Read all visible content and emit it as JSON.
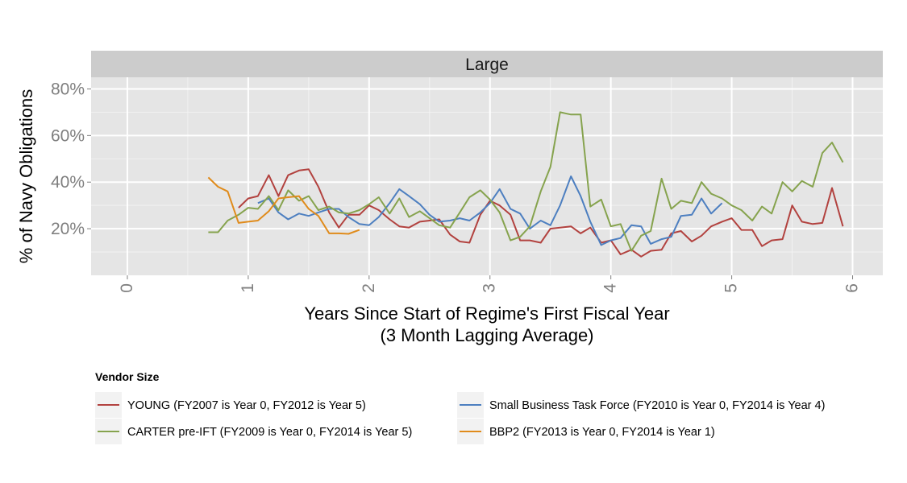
{
  "chart_data": {
    "type": "line",
    "panel_title": "Large",
    "xlabel_line1": "Years Since Start of Regime's First Fiscal Year",
    "xlabel_line2": "(3 Month Lagging Average)",
    "ylabel": "% of Navy Obligations",
    "xlim": [
      -0.3,
      6.25
    ],
    "ylim": [
      0.0,
      0.85
    ],
    "x_ticks": [
      0,
      1,
      2,
      3,
      4,
      5,
      6
    ],
    "x_tick_labels": [
      "0",
      "1",
      "2",
      "3",
      "4",
      "5",
      "6"
    ],
    "y_ticks": [
      0.2,
      0.4,
      0.6,
      0.8
    ],
    "y_tick_labels": [
      "20%",
      "40%",
      "60%",
      "80%"
    ],
    "grid": true,
    "legend": {
      "title": "Vendor Size",
      "placement": "bottom"
    },
    "series": [
      {
        "name": "YOUNG (FY2007 is Year 0, FY2012 is Year 5)",
        "color": "#b2423f",
        "x": [
          0.92,
          1.0,
          1.08,
          1.17,
          1.25,
          1.33,
          1.42,
          1.5,
          1.58,
          1.67,
          1.75,
          1.83,
          1.92,
          2.0,
          2.08,
          2.17,
          2.25,
          2.33,
          2.42,
          2.5,
          2.58,
          2.67,
          2.75,
          2.83,
          2.92,
          3.0,
          3.08,
          3.17,
          3.25,
          3.33,
          3.42,
          3.5,
          3.58,
          3.67,
          3.75,
          3.83,
          3.92,
          4.0,
          4.08,
          4.17,
          4.25,
          4.33,
          4.42,
          4.5,
          4.58,
          4.67,
          4.75,
          4.83,
          4.92,
          5.0,
          5.08,
          5.17,
          5.25,
          5.33,
          5.42,
          5.5,
          5.58,
          5.67,
          5.75,
          5.83,
          5.92
        ],
        "y": [
          0.29,
          0.33,
          0.34,
          0.43,
          0.34,
          0.43,
          0.45,
          0.455,
          0.38,
          0.27,
          0.205,
          0.26,
          0.26,
          0.3,
          0.28,
          0.24,
          0.21,
          0.205,
          0.23,
          0.235,
          0.24,
          0.175,
          0.145,
          0.14,
          0.26,
          0.32,
          0.3,
          0.26,
          0.15,
          0.15,
          0.14,
          0.2,
          0.205,
          0.21,
          0.18,
          0.205,
          0.14,
          0.15,
          0.09,
          0.11,
          0.08,
          0.105,
          0.11,
          0.18,
          0.19,
          0.145,
          0.17,
          0.21,
          0.23,
          0.245,
          0.195,
          0.195,
          0.125,
          0.15,
          0.155,
          0.3,
          0.23,
          0.22,
          0.225,
          0.375,
          0.21
        ]
      },
      {
        "name": "Small Business Task Force (FY2010 is Year 0, FY2014 is Year 4)",
        "color": "#4d7fc0",
        "x": [
          1.08,
          1.17,
          1.25,
          1.33,
          1.42,
          1.5,
          1.58,
          1.67,
          1.75,
          1.83,
          1.92,
          2.0,
          2.08,
          2.17,
          2.25,
          2.33,
          2.42,
          2.5,
          2.58,
          2.67,
          2.75,
          2.83,
          2.92,
          3.0,
          3.08,
          3.17,
          3.25,
          3.33,
          3.42,
          3.5,
          3.58,
          3.67,
          3.75,
          3.83,
          3.92,
          4.0,
          4.08,
          4.17,
          4.25,
          4.33,
          4.42,
          4.5,
          4.58,
          4.67,
          4.75,
          4.83,
          4.92
        ],
        "y": [
          0.31,
          0.33,
          0.27,
          0.24,
          0.265,
          0.255,
          0.27,
          0.285,
          0.285,
          0.25,
          0.22,
          0.215,
          0.25,
          0.31,
          0.37,
          0.34,
          0.305,
          0.26,
          0.23,
          0.235,
          0.245,
          0.235,
          0.27,
          0.31,
          0.37,
          0.285,
          0.265,
          0.2,
          0.235,
          0.215,
          0.3,
          0.425,
          0.34,
          0.23,
          0.13,
          0.15,
          0.16,
          0.215,
          0.21,
          0.135,
          0.155,
          0.165,
          0.255,
          0.26,
          0.33,
          0.265,
          0.31
        ]
      },
      {
        "name": "CARTER pre-IFT (FY2009 is Year 0, FY2014 is Year 5)",
        "color": "#86a34e",
        "x": [
          0.67,
          0.75,
          0.83,
          0.92,
          1.0,
          1.08,
          1.17,
          1.25,
          1.33,
          1.42,
          1.5,
          1.58,
          1.67,
          1.75,
          1.83,
          1.92,
          2.0,
          2.08,
          2.17,
          2.25,
          2.33,
          2.42,
          2.5,
          2.58,
          2.67,
          2.75,
          2.83,
          2.92,
          3.0,
          3.08,
          3.17,
          3.25,
          3.33,
          3.42,
          3.5,
          3.58,
          3.67,
          3.75,
          3.83,
          3.92,
          4.0,
          4.08,
          4.17,
          4.25,
          4.33,
          4.42,
          4.5,
          4.58,
          4.67,
          4.75,
          4.83,
          4.92,
          5.0,
          5.08,
          5.17,
          5.25,
          5.33,
          5.42,
          5.5,
          5.58,
          5.67,
          5.75,
          5.83,
          5.92
        ],
        "y": [
          0.185,
          0.185,
          0.235,
          0.26,
          0.29,
          0.285,
          0.34,
          0.28,
          0.365,
          0.32,
          0.34,
          0.28,
          0.295,
          0.27,
          0.265,
          0.28,
          0.305,
          0.335,
          0.265,
          0.33,
          0.25,
          0.275,
          0.245,
          0.215,
          0.205,
          0.27,
          0.335,
          0.365,
          0.325,
          0.27,
          0.15,
          0.165,
          0.21,
          0.36,
          0.465,
          0.7,
          0.69,
          0.69,
          0.295,
          0.325,
          0.21,
          0.22,
          0.105,
          0.17,
          0.19,
          0.415,
          0.285,
          0.32,
          0.31,
          0.4,
          0.35,
          0.33,
          0.3,
          0.28,
          0.235,
          0.295,
          0.265,
          0.4,
          0.36,
          0.405,
          0.38,
          0.525,
          0.57,
          0.485
        ]
      },
      {
        "name": "BBP2 (FY2013 is Year 0, FY2014 is Year 1)",
        "color": "#e08b1b",
        "x": [
          0.67,
          0.75,
          0.83,
          0.92,
          1.0,
          1.08,
          1.17,
          1.25,
          1.33,
          1.42,
          1.5,
          1.58,
          1.67,
          1.75,
          1.83,
          1.92
        ],
        "y": [
          0.42,
          0.38,
          0.36,
          0.225,
          0.23,
          0.235,
          0.275,
          0.33,
          0.335,
          0.34,
          0.285,
          0.255,
          0.18,
          0.18,
          0.178,
          0.195
        ]
      }
    ]
  }
}
